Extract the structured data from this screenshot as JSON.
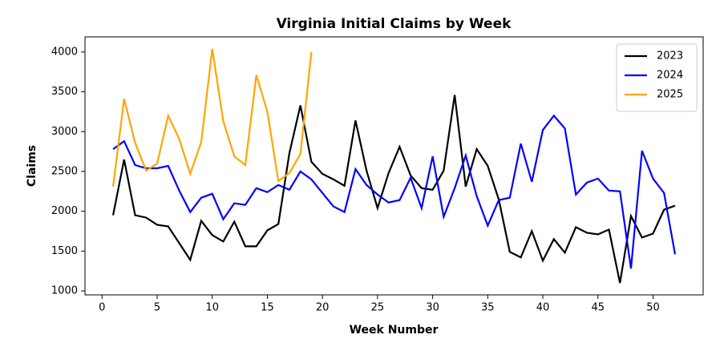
{
  "chart_data": {
    "type": "line",
    "title": "Virginia Initial Claims by Week",
    "x_label": "Week Number",
    "y_label": "Claims",
    "x": [
      1,
      2,
      3,
      4,
      5,
      6,
      7,
      8,
      9,
      10,
      11,
      12,
      13,
      14,
      15,
      16,
      17,
      18,
      19,
      20,
      21,
      22,
      23,
      24,
      25,
      26,
      27,
      28,
      29,
      30,
      31,
      32,
      33,
      34,
      35,
      36,
      37,
      38,
      39,
      40,
      41,
      42,
      43,
      44,
      45,
      46,
      47,
      48,
      49,
      50,
      51,
      52
    ],
    "xlim": [
      -1.55,
      54.55
    ],
    "xticks": [
      0,
      5,
      10,
      15,
      20,
      25,
      30,
      35,
      40,
      45,
      50
    ],
    "ylim": [
      950,
      4190
    ],
    "yticks": [
      1000,
      1500,
      2000,
      2500,
      3000,
      3500,
      4000
    ],
    "legend": "upper right",
    "series": [
      {
        "name": "2023",
        "color": "#000000",
        "values": [
          1950,
          2650,
          1950,
          1920,
          1830,
          1810,
          1600,
          1390,
          1880,
          1700,
          1620,
          1870,
          1560,
          1560,
          1760,
          1840,
          2730,
          3330,
          2620,
          2470,
          2400,
          2320,
          3140,
          2510,
          2040,
          2480,
          2810,
          2450,
          2290,
          2270,
          2510,
          3460,
          2310,
          2780,
          2570,
          2150,
          1490,
          1420,
          1750,
          1380,
          1650,
          1480,
          1800,
          1730,
          1710,
          1770,
          1100,
          1940,
          1670,
          1720,
          2020,
          2070
        ]
      },
      {
        "name": "2024",
        "color": "#0000ff",
        "values": [
          2780,
          2880,
          2580,
          2540,
          2540,
          2570,
          2260,
          1990,
          2170,
          2220,
          1900,
          2100,
          2080,
          2290,
          2240,
          2330,
          2270,
          2500,
          2400,
          2230,
          2060,
          1990,
          2530,
          2330,
          2210,
          2110,
          2140,
          2420,
          2040,
          2690,
          1930,
          2290,
          2700,
          2190,
          1820,
          2140,
          2170,
          2850,
          2370,
          3020,
          3200,
          3040,
          2210,
          2360,
          2410,
          2260,
          2250,
          1280,
          2760,
          2410,
          2230,
          1460
        ]
      },
      {
        "name": "2025",
        "color": "#ffa500",
        "values": [
          2310,
          3410,
          2860,
          2510,
          2600,
          3200,
          2910,
          2470,
          2870,
          4040,
          3130,
          2690,
          2580,
          3710,
          3250,
          2380,
          2480,
          2720,
          4000,
          null,
          null,
          null,
          null,
          null,
          null,
          null,
          null,
          null,
          null,
          null,
          null,
          null,
          null,
          null,
          null,
          null,
          null,
          null,
          null,
          null,
          null,
          null,
          null,
          null,
          null,
          null,
          null,
          null,
          null,
          null,
          null,
          null
        ]
      }
    ]
  }
}
